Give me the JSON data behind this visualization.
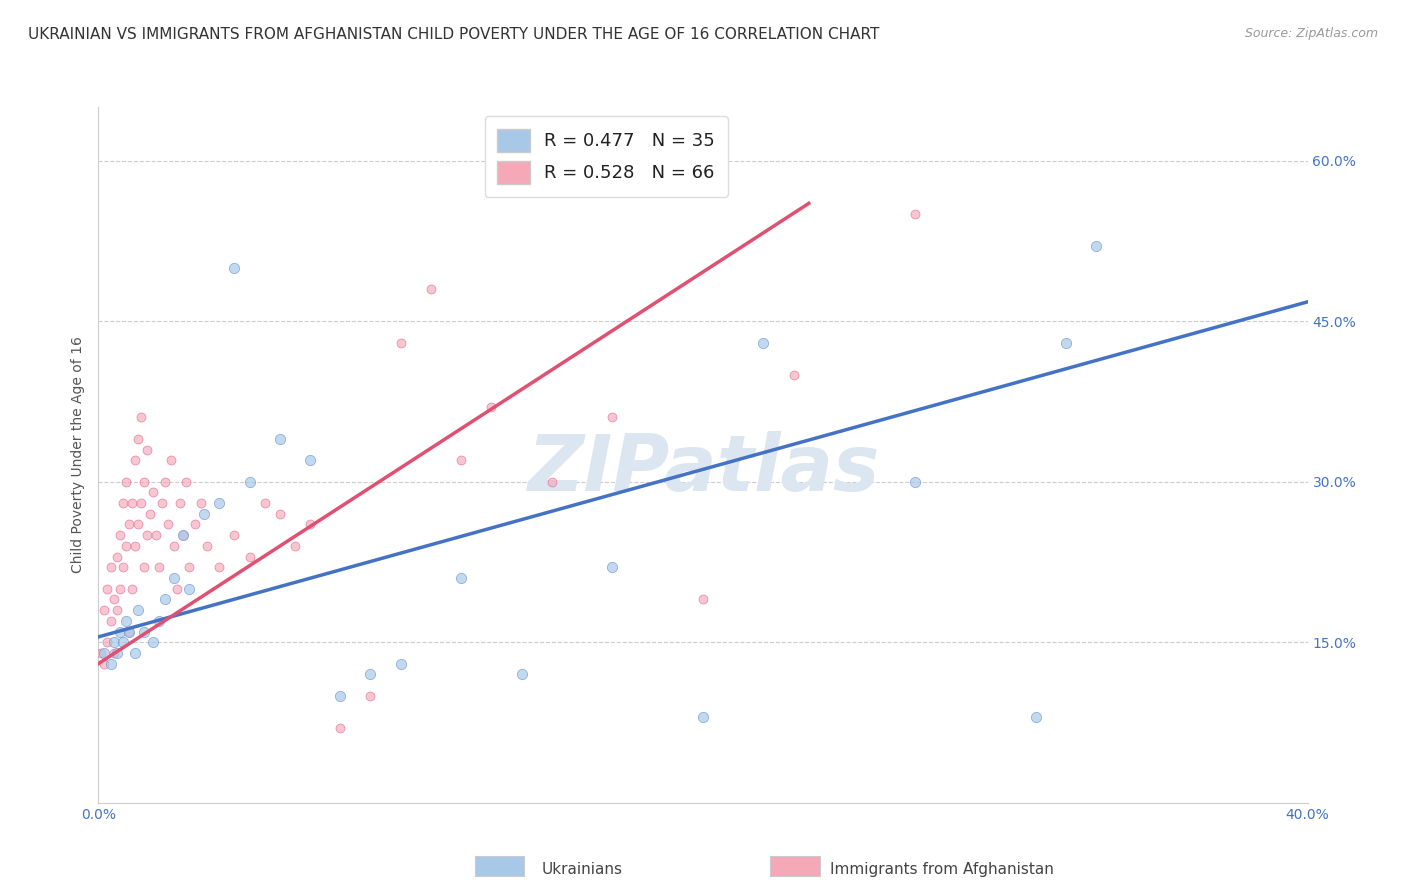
{
  "title": "UKRAINIAN VS IMMIGRANTS FROM AFGHANISTAN CHILD POVERTY UNDER THE AGE OF 16 CORRELATION CHART",
  "source": "Source: ZipAtlas.com",
  "ylabel": "Child Poverty Under the Age of 16",
  "watermark": "ZIPatlas",
  "xlim": [
    0.0,
    0.4
  ],
  "ylim": [
    0.0,
    0.65
  ],
  "xticks": [
    0.0,
    0.05,
    0.1,
    0.15,
    0.2,
    0.25,
    0.3,
    0.35,
    0.4
  ],
  "xticklabels": [
    "0.0%",
    "",
    "",
    "",
    "",
    "",
    "",
    "",
    "40.0%"
  ],
  "yticks": [
    0.0,
    0.15,
    0.3,
    0.45,
    0.6
  ],
  "yticklabels_right": [
    "",
    "15.0%",
    "30.0%",
    "45.0%",
    "60.0%"
  ],
  "legend_label_blue": "R = 0.477   N = 35",
  "legend_label_pink": "R = 0.528   N = 66",
  "legend_label_ukr": "Ukrainians",
  "legend_label_afg": "Immigrants from Afghanistan",
  "blue_scatter": {
    "color": "#a8c8e8",
    "edgecolor": "#5588cc",
    "alpha": 0.7,
    "x": [
      0.002,
      0.004,
      0.005,
      0.006,
      0.007,
      0.008,
      0.009,
      0.01,
      0.012,
      0.013,
      0.015,
      0.018,
      0.02,
      0.022,
      0.025,
      0.028,
      0.03,
      0.035,
      0.04,
      0.045,
      0.05,
      0.06,
      0.07,
      0.08,
      0.09,
      0.1,
      0.12,
      0.14,
      0.17,
      0.2,
      0.22,
      0.27,
      0.31,
      0.32,
      0.33
    ],
    "y": [
      0.14,
      0.13,
      0.15,
      0.14,
      0.16,
      0.15,
      0.17,
      0.16,
      0.14,
      0.18,
      0.16,
      0.15,
      0.17,
      0.19,
      0.21,
      0.25,
      0.2,
      0.27,
      0.28,
      0.5,
      0.3,
      0.34,
      0.32,
      0.1,
      0.12,
      0.13,
      0.21,
      0.12,
      0.22,
      0.08,
      0.43,
      0.3,
      0.08,
      0.43,
      0.52
    ]
  },
  "pink_scatter": {
    "color": "#f4a8b8",
    "edgecolor": "#e05080",
    "alpha": 0.65,
    "x": [
      0.001,
      0.002,
      0.002,
      0.003,
      0.003,
      0.004,
      0.004,
      0.005,
      0.005,
      0.006,
      0.006,
      0.007,
      0.007,
      0.008,
      0.008,
      0.009,
      0.009,
      0.01,
      0.01,
      0.011,
      0.011,
      0.012,
      0.012,
      0.013,
      0.013,
      0.014,
      0.014,
      0.015,
      0.015,
      0.016,
      0.016,
      0.017,
      0.018,
      0.019,
      0.02,
      0.021,
      0.022,
      0.023,
      0.024,
      0.025,
      0.026,
      0.027,
      0.028,
      0.029,
      0.03,
      0.032,
      0.034,
      0.036,
      0.04,
      0.045,
      0.05,
      0.055,
      0.06,
      0.065,
      0.07,
      0.08,
      0.09,
      0.1,
      0.11,
      0.12,
      0.13,
      0.15,
      0.17,
      0.2,
      0.23,
      0.27
    ],
    "y": [
      0.14,
      0.13,
      0.18,
      0.15,
      0.2,
      0.17,
      0.22,
      0.14,
      0.19,
      0.18,
      0.23,
      0.2,
      0.25,
      0.22,
      0.28,
      0.24,
      0.3,
      0.16,
      0.26,
      0.2,
      0.28,
      0.24,
      0.32,
      0.26,
      0.34,
      0.28,
      0.36,
      0.22,
      0.3,
      0.25,
      0.33,
      0.27,
      0.29,
      0.25,
      0.22,
      0.28,
      0.3,
      0.26,
      0.32,
      0.24,
      0.2,
      0.28,
      0.25,
      0.3,
      0.22,
      0.26,
      0.28,
      0.24,
      0.22,
      0.25,
      0.23,
      0.28,
      0.27,
      0.24,
      0.26,
      0.07,
      0.1,
      0.43,
      0.48,
      0.32,
      0.37,
      0.3,
      0.36,
      0.19,
      0.4,
      0.55
    ]
  },
  "blue_line": {
    "color": "#4472c4",
    "x0": 0.0,
    "x1": 0.4,
    "y0": 0.155,
    "y1": 0.468
  },
  "pink_line": {
    "color": "#e05070",
    "x0": 0.0,
    "x1": 0.235,
    "y0": 0.13,
    "y1": 0.56
  },
  "background_color": "#ffffff",
  "grid_color": "#cccccc",
  "title_color": "#333333",
  "title_fontsize": 11,
  "source_fontsize": 9,
  "ylabel_fontsize": 10,
  "watermark_color": "#dce6f0",
  "watermark_fontsize": 56,
  "scatter_size_blue": 55,
  "scatter_size_pink": 42
}
